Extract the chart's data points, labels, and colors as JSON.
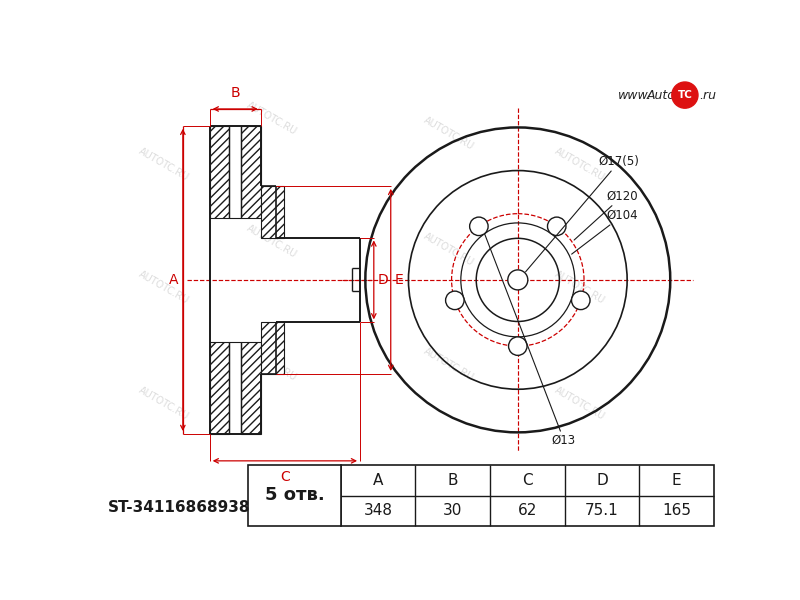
{
  "bg_color": "#ffffff",
  "line_color": "#1a1a1a",
  "red_color": "#cc0000",
  "part_number": "ST-34116868938",
  "holes": 5,
  "holes_label": "5 отв.",
  "dimensions": {
    "A": "348",
    "B": "30",
    "C": "62",
    "D": "75.1",
    "E": "165"
  },
  "dim_labels": [
    "A",
    "B",
    "C",
    "D",
    "E"
  ],
  "annotations": [
    "Ø17(5)",
    "Ø120",
    "Ø104",
    "Ø13"
  ],
  "watermark": "AUTOTC.RU",
  "logo": "www.Auto TC .ru"
}
